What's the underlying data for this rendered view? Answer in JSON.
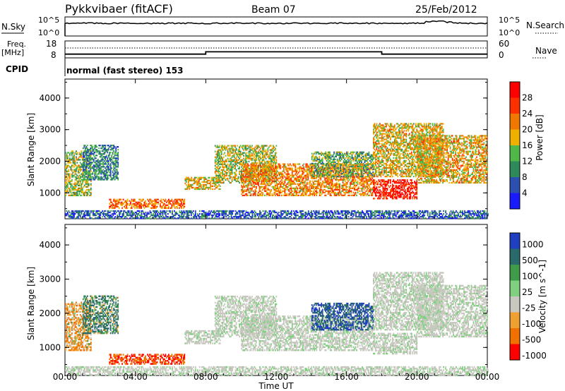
{
  "header": {
    "station": "Pykkvibaer (fitACF)",
    "beam": "Beam 07",
    "date": "25/Feb/2012",
    "cpid_label": "CPID",
    "cpid_text": "normal (fast stereo) 153"
  },
  "sky_panel": {
    "left_label": "N.Sky",
    "right_label": "N.Search",
    "left_ticks": [
      "10^5",
      "10^0"
    ],
    "right_ticks": [
      "10^5",
      "10^0"
    ]
  },
  "freq_panel": {
    "left_label_1": "Freq.",
    "left_label_2": "[MHz]",
    "right_label": "Nave",
    "left_ticks": [
      "18",
      "8"
    ],
    "right_ticks": [
      "60",
      "0"
    ]
  },
  "time_axis": {
    "label": "Time UT",
    "ticks": [
      "00:00",
      "04:00",
      "08:00",
      "12:00",
      "16:00",
      "20:00",
      "00:00"
    ]
  },
  "power_panel": {
    "ylabel": "Slant Range [km]",
    "yticks": [
      "1000",
      "2000",
      "3000",
      "4000"
    ],
    "colorbar_label": "Power [dB]",
    "colorbar_ticks": [
      "4",
      "8",
      "12",
      "16",
      "20",
      "24",
      "28"
    ]
  },
  "velocity_panel": {
    "ylabel": "Slant Range [km]",
    "yticks": [
      "1000",
      "2000",
      "3000",
      "4000"
    ],
    "colorbar_label": "Velocity [m s^-1]",
    "colorbar_ticks": [
      "1000",
      "500",
      "100",
      "25",
      "-25",
      "-100",
      "-500",
      "-1000"
    ]
  },
  "chart_data": {
    "type": "heatmap",
    "title": "Pykkvibaer (fitACF) Beam 07 25/Feb/2012",
    "xlabel": "Time UT",
    "ylabel": "Slant Range [km]",
    "x_range_hours": [
      0,
      24
    ],
    "y_range_km": [
      180,
      4600
    ],
    "power_scale_db": [
      0,
      30
    ],
    "power_colors": [
      "#1a1aff",
      "#2c4fb0",
      "#2f8a5a",
      "#4fb848",
      "#f0b000",
      "#f07800",
      "#ff3000",
      "#ff0000"
    ],
    "velocity_colors": [
      "#1f3fc0",
      "#2a6a6a",
      "#3f9a4a",
      "#7fd07f",
      "#c8c8c0",
      "#f0a030",
      "#f07000",
      "#ff0000"
    ],
    "echo_regions": [
      {
        "t0": 0.0,
        "t1": 1.5,
        "r0": 900,
        "r1": 2300,
        "power": 14,
        "velocity": -100
      },
      {
        "t0": 1.0,
        "t1": 3.0,
        "r0": 1400,
        "r1": 2500,
        "power": 9,
        "velocity": 100
      },
      {
        "t0": 2.5,
        "t1": 6.8,
        "r0": 500,
        "r1": 800,
        "power": 22,
        "velocity": -500
      },
      {
        "t0": 6.8,
        "t1": 8.8,
        "r0": 1100,
        "r1": 1500,
        "power": 17,
        "velocity": 0
      },
      {
        "t0": 8.5,
        "t1": 12.0,
        "r0": 1300,
        "r1": 2500,
        "power": 15,
        "velocity": 0
      },
      {
        "t0": 10.0,
        "t1": 17.5,
        "r0": 900,
        "r1": 1900,
        "power": 20,
        "velocity": 0
      },
      {
        "t0": 14.0,
        "t1": 17.5,
        "r0": 1500,
        "r1": 2300,
        "power": 12,
        "velocity": 500
      },
      {
        "t0": 17.5,
        "t1": 20.0,
        "r0": 800,
        "r1": 1400,
        "power": 27,
        "velocity": 0
      },
      {
        "t0": 17.5,
        "t1": 21.5,
        "r0": 1500,
        "r1": 3200,
        "power": 17,
        "velocity": 0
      },
      {
        "t0": 20.0,
        "t1": 24.0,
        "r0": 1300,
        "r1": 2800,
        "power": 18,
        "velocity": 0
      },
      {
        "t0": 0.0,
        "t1": 24.0,
        "r0": 180,
        "r1": 450,
        "power": 6,
        "velocity": 0
      }
    ],
    "frequency_mhz": [
      {
        "t": 0.0,
        "f": 10.2
      },
      {
        "t": 8.0,
        "f": 10.2
      },
      {
        "t": 8.0,
        "f": 11.6
      },
      {
        "t": 18.0,
        "f": 11.6
      },
      {
        "t": 18.0,
        "f": 10.2
      },
      {
        "t": 24.0,
        "f": 10.2
      }
    ]
  }
}
